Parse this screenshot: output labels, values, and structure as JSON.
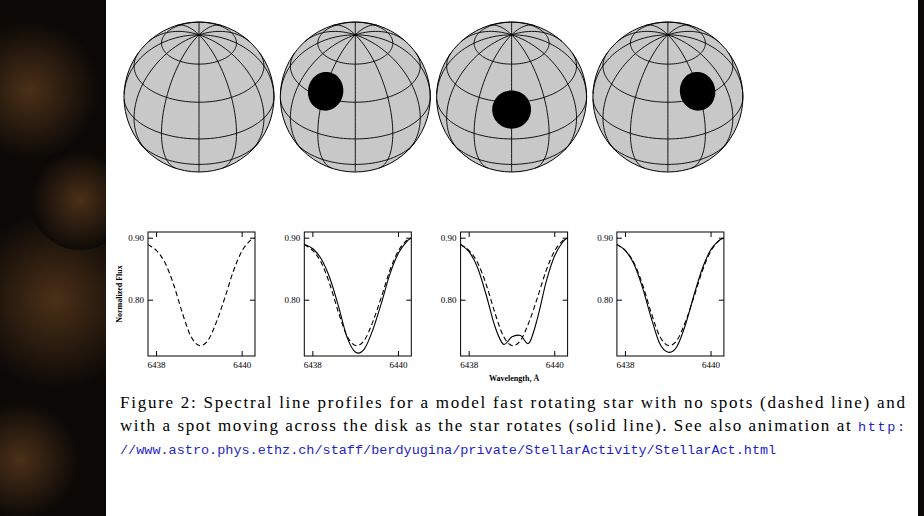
{
  "chart_data": [
    {
      "type": "line",
      "ylabel": "Normalized Flux",
      "x": [
        6437.8,
        6438.0,
        6438.2,
        6438.4,
        6438.6,
        6438.8,
        6439.0,
        6439.2,
        6439.4,
        6439.6,
        6439.8,
        6440.0,
        6440.2,
        6440.3
      ],
      "series": [
        {
          "color": "#000000",
          "line_style": "dashed",
          "values": [
            0.89,
            0.88,
            0.86,
            0.825,
            0.78,
            0.742,
            0.727,
            0.735,
            0.765,
            0.805,
            0.848,
            0.88,
            0.897,
            0.9
          ]
        }
      ],
      "xlim": [
        6437.8,
        6440.3
      ],
      "ylim": [
        0.71,
        0.91
      ],
      "xticks": [
        6438,
        6440
      ],
      "yticks": [
        {
          "value": 0.8,
          "label": "0.80"
        },
        {
          "value": 0.9,
          "label": "0.90"
        }
      ]
    },
    {
      "type": "line",
      "x": [
        6437.8,
        6438.0,
        6438.2,
        6438.4,
        6438.6,
        6438.8,
        6439.0,
        6439.2,
        6439.4,
        6439.6,
        6439.8,
        6440.0,
        6440.2,
        6440.3
      ],
      "series": [
        {
          "color": "#000000",
          "line_style": "dashed",
          "values": [
            0.89,
            0.88,
            0.86,
            0.825,
            0.78,
            0.742,
            0.727,
            0.735,
            0.765,
            0.805,
            0.848,
            0.88,
            0.897,
            0.9
          ]
        },
        {
          "color": "#000000",
          "line_style": "solid",
          "values": [
            0.89,
            0.883,
            0.866,
            0.835,
            0.79,
            0.74,
            0.716,
            0.721,
            0.752,
            0.795,
            0.842,
            0.876,
            0.895,
            0.9
          ]
        }
      ],
      "xlim": [
        6437.8,
        6440.3
      ],
      "ylim": [
        0.71,
        0.91
      ],
      "xticks": [
        6438,
        6440
      ],
      "yticks": [
        {
          "value": 0.8,
          "label": "0.80"
        },
        {
          "value": 0.9,
          "label": "0.90"
        }
      ]
    },
    {
      "type": "line",
      "xlabel": "Wavelength, Å",
      "x": [
        6437.8,
        6438.0,
        6438.2,
        6438.4,
        6438.6,
        6438.8,
        6439.0,
        6439.2,
        6439.4,
        6439.6,
        6439.8,
        6440.0,
        6440.2,
        6440.3
      ],
      "series": [
        {
          "color": "#000000",
          "line_style": "dashed",
          "values": [
            0.89,
            0.88,
            0.86,
            0.825,
            0.78,
            0.742,
            0.727,
            0.735,
            0.765,
            0.805,
            0.848,
            0.88,
            0.897,
            0.9
          ]
        },
        {
          "color": "#000000",
          "line_style": "solid",
          "values": [
            0.89,
            0.878,
            0.852,
            0.808,
            0.758,
            0.729,
            0.741,
            0.743,
            0.731,
            0.772,
            0.83,
            0.872,
            0.895,
            0.9
          ]
        }
      ],
      "xlim": [
        6437.8,
        6440.3
      ],
      "ylim": [
        0.71,
        0.91
      ],
      "xticks": [
        6438,
        6440
      ],
      "yticks": [
        {
          "value": 0.8,
          "label": "0.80"
        },
        {
          "value": 0.9,
          "label": "0.90"
        }
      ]
    },
    {
      "type": "line",
      "x": [
        6437.8,
        6438.0,
        6438.2,
        6438.4,
        6438.6,
        6438.8,
        6439.0,
        6439.2,
        6439.4,
        6439.6,
        6439.8,
        6440.0,
        6440.2,
        6440.3
      ],
      "series": [
        {
          "color": "#000000",
          "line_style": "dashed",
          "values": [
            0.89,
            0.88,
            0.86,
            0.825,
            0.78,
            0.742,
            0.727,
            0.735,
            0.765,
            0.805,
            0.848,
            0.88,
            0.897,
            0.9
          ]
        },
        {
          "color": "#000000",
          "line_style": "solid",
          "values": [
            0.89,
            0.88,
            0.858,
            0.82,
            0.772,
            0.73,
            0.716,
            0.725,
            0.76,
            0.808,
            0.852,
            0.882,
            0.897,
            0.9
          ]
        }
      ],
      "xlim": [
        6437.8,
        6440.3
      ],
      "ylim": [
        0.71,
        0.91
      ],
      "xticks": [
        6438,
        6440
      ],
      "yticks": [
        {
          "value": 0.8,
          "label": "0.80"
        },
        {
          "value": 0.9,
          "label": "0.90"
        }
      ]
    }
  ],
  "spheres": [
    {
      "spot": null
    },
    {
      "spot": {
        "latitude": 35,
        "longitude": -30,
        "radius": 15
      }
    },
    {
      "spot": {
        "latitude": 24,
        "longitude": 0,
        "radius": 15
      }
    },
    {
      "spot": {
        "latitude": 35,
        "longitude": 30,
        "radius": 15
      }
    }
  ],
  "caption": {
    "lines": [
      [
        {
          "text": "Figure 2: Spectral line profiles for a model fast rotating star with no spots (dashed line) and",
          "style": "plain"
        }
      ],
      [
        {
          "text": "with a spot moving across the disk as the star rotates (solid line). See also animation at ",
          "style": "plain"
        },
        {
          "text": "http:",
          "style": "link"
        }
      ],
      [
        {
          "text": "//www.astro.phys.ethz.ch/staff/berdyugina/private/StellarActivity/StellarAct.html",
          "style": "link"
        }
      ]
    ]
  }
}
